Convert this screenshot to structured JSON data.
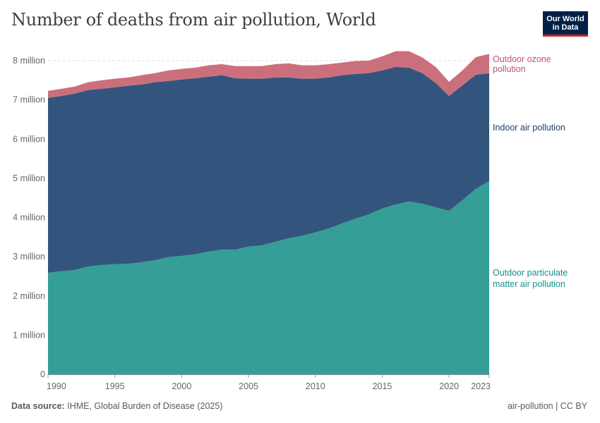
{
  "header": {
    "title": "Number of deaths from air pollution, World"
  },
  "logo": {
    "line1": "Our World",
    "line2": "in Data"
  },
  "footer": {
    "source_label": "Data source:",
    "source_text": "IHME, Global Burden of Disease (2025)",
    "license": "air-pollution | CC BY"
  },
  "chart_data": {
    "type": "area",
    "stacked": true,
    "title": "Number of deaths from air pollution, World",
    "x": [
      1990,
      1991,
      1992,
      1993,
      1994,
      1995,
      1996,
      1997,
      1998,
      1999,
      2000,
      2001,
      2002,
      2003,
      2004,
      2005,
      2006,
      2007,
      2008,
      2009,
      2010,
      2011,
      2012,
      2013,
      2014,
      2015,
      2016,
      2017,
      2018,
      2019,
      2020,
      2021,
      2022,
      2023
    ],
    "xlim": [
      1990,
      2023
    ],
    "ylim": [
      0,
      8000000
    ],
    "grid": true,
    "x_tick_labels": [
      "1990",
      "1995",
      "2000",
      "2005",
      "2010",
      "2015",
      "2020",
      "2023"
    ],
    "y_tick_labels": [
      "0",
      "1 million",
      "2 million",
      "3 million",
      "4 million",
      "5 million",
      "6 million",
      "7 million",
      "8 million"
    ],
    "y_ticks": [
      0,
      1000000,
      2000000,
      3000000,
      4000000,
      5000000,
      6000000,
      7000000,
      8000000
    ],
    "legend_placement": "right-inline",
    "series": [
      {
        "name": "Outdoor particulate matter air pollution",
        "label_lines": [
          "Outdoor particulate",
          "matter air pollution"
        ],
        "color": "#359e96",
        "label_color": "#14918a",
        "values": [
          2590000,
          2630000,
          2660000,
          2750000,
          2790000,
          2810000,
          2820000,
          2860000,
          2910000,
          2990000,
          3020000,
          3060000,
          3130000,
          3180000,
          3180000,
          3260000,
          3290000,
          3380000,
          3470000,
          3530000,
          3620000,
          3720000,
          3850000,
          3970000,
          4080000,
          4230000,
          4330000,
          4410000,
          4350000,
          4260000,
          4170000,
          4440000,
          4730000,
          4930000
        ]
      },
      {
        "name": "Indoor air pollution",
        "label_lines": [
          "Indoor air pollution"
        ],
        "color": "#33557d",
        "label_color": "#1d3d63",
        "values": [
          4460000,
          4470000,
          4500000,
          4500000,
          4490000,
          4510000,
          4540000,
          4530000,
          4540000,
          4490000,
          4500000,
          4490000,
          4460000,
          4450000,
          4370000,
          4280000,
          4250000,
          4190000,
          4100000,
          4010000,
          3920000,
          3850000,
          3780000,
          3690000,
          3600000,
          3520000,
          3510000,
          3410000,
          3330000,
          3170000,
          2930000,
          2930000,
          2910000,
          2750000
        ]
      },
      {
        "name": "Outdoor ozone pollution",
        "label_lines": [
          "Outdoor ozone",
          "pollution"
        ],
        "color": "#cc6f7c",
        "label_color": "#c4526a",
        "values": [
          180000,
          180000,
          180000,
          200000,
          220000,
          220000,
          210000,
          240000,
          230000,
          270000,
          270000,
          270000,
          290000,
          280000,
          310000,
          320000,
          320000,
          340000,
          360000,
          340000,
          340000,
          340000,
          320000,
          330000,
          320000,
          360000,
          400000,
          420000,
          400000,
          410000,
          360000,
          380000,
          450000,
          490000
        ]
      }
    ]
  }
}
